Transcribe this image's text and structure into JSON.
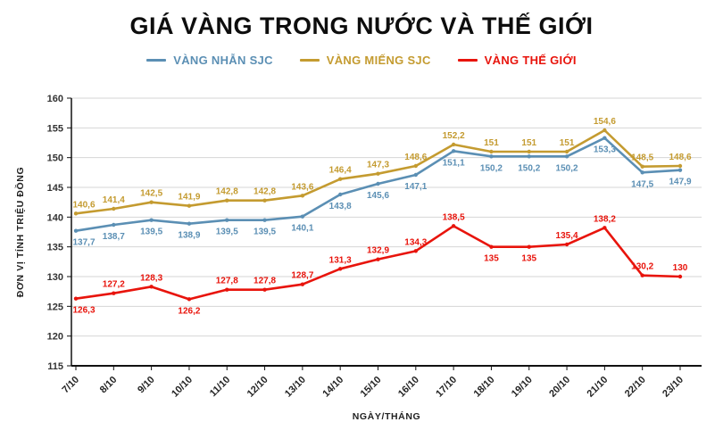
{
  "title": "GIÁ VÀNG TRONG NƯỚC VÀ THẾ GIỚI",
  "colors": {
    "grid": "#d6d6d6",
    "axis": "#111111",
    "title": "#0d0d0d"
  },
  "chart_data": {
    "type": "line",
    "title": "GIÁ VÀNG TRONG NƯỚC VÀ THẾ GIỚI",
    "xlabel": "NGÀY/THÁNG",
    "ylabel": "ĐƠN VỊ TÍNH TRIỆU ĐỒNG",
    "ylim": [
      115,
      160
    ],
    "ytick_step": 5,
    "grid": true,
    "legend_position": "top",
    "decimal_separator": ",",
    "categories": [
      "7/10",
      "8/10",
      "9/10",
      "10/10",
      "11/10",
      "12/10",
      "13/10",
      "14/10",
      "15/10",
      "16/10",
      "17/10",
      "18/10",
      "19/10",
      "20/10",
      "21/10",
      "22/10",
      "23/10"
    ],
    "series": [
      {
        "name": "VÀNG NHẪN SJC",
        "color": "#5b8fb4",
        "label_position": "below",
        "values": [
          137.7,
          138.7,
          139.5,
          138.9,
          139.5,
          139.5,
          140.1,
          143.8,
          145.6,
          147.1,
          151.1,
          150.2,
          150.2,
          150.2,
          153.3,
          147.5,
          147.9
        ]
      },
      {
        "name": "VÀNG MIẾNG SJC",
        "color": "#c49b30",
        "label_position": "above",
        "values": [
          140.6,
          141.4,
          142.5,
          141.9,
          142.8,
          142.8,
          143.6,
          146.4,
          147.3,
          148.6,
          152.2,
          151,
          151,
          151,
          154.6,
          148.5,
          148.6
        ]
      },
      {
        "name": "VÀNG THẾ GIỚI",
        "color": "#e8140c",
        "label_position": "above",
        "label_below_indices": [
          0,
          3,
          11,
          12
        ],
        "values": [
          126.3,
          127.2,
          128.3,
          126.2,
          127.8,
          127.8,
          128.7,
          131.3,
          132.9,
          134.3,
          138.5,
          135,
          135,
          135.4,
          138.2,
          130.2,
          130
        ]
      }
    ]
  }
}
